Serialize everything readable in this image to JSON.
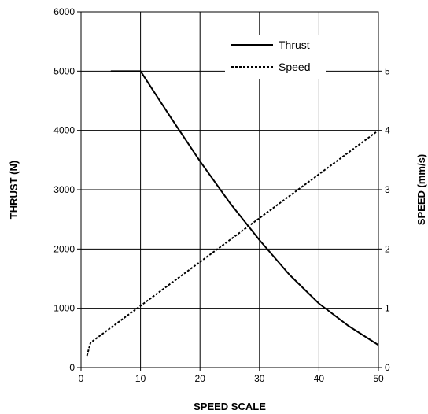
{
  "chart_data": {
    "type": "line",
    "xlabel": "SPEED SCALE",
    "ylabel": "THRUST (N)",
    "y2label": "SPEED (mm/s)",
    "xlim": [
      0,
      50
    ],
    "ylim": [
      0,
      6000
    ],
    "y2lim": [
      0,
      6
    ],
    "x_ticks": [
      "0",
      "10",
      "20",
      "30",
      "40",
      "50"
    ],
    "y_ticks": [
      "0",
      "1000",
      "2000",
      "3000",
      "4000",
      "5000",
      "6000"
    ],
    "y2_ticks": [
      "0",
      "1",
      "2",
      "3",
      "4",
      "5"
    ],
    "grid": true,
    "legend_position": "top-right",
    "series": [
      {
        "name": "Thrust",
        "axis": "left",
        "style": "solid",
        "x": [
          5,
          10,
          15,
          20,
          25,
          30,
          35,
          40,
          45,
          50
        ],
        "y": [
          5000,
          5000,
          4230,
          3480,
          2780,
          2150,
          1570,
          1080,
          700,
          380
        ]
      },
      {
        "name": "Speed",
        "axis": "right",
        "style": "dotted",
        "x": [
          1,
          1.6,
          50
        ],
        "y": [
          0.2,
          0.42,
          4.0
        ]
      }
    ]
  }
}
